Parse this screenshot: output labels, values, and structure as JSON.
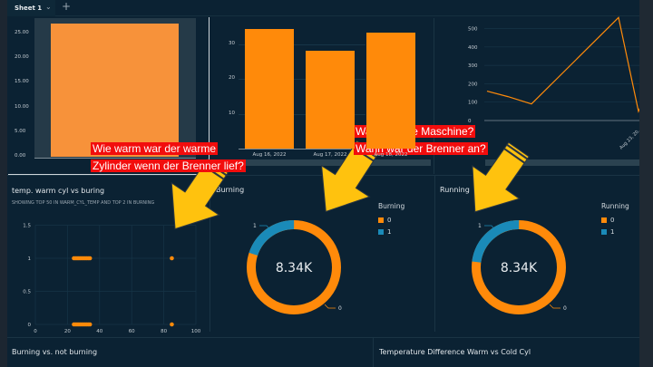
{
  "tabs": {
    "active": "Sheet 1",
    "add_icon": "plus-icon",
    "dropdown_icon": "chevron-down-icon"
  },
  "colors": {
    "orange": "#ff8a0a",
    "blue": "#1a8ab8",
    "background": "#0b2233",
    "callout": "#f20d0d",
    "arrow": "#ffc20e"
  },
  "bar_single": {
    "yticks": [
      "25.00",
      "20.00",
      "15.00",
      "10.00",
      "5.00",
      "0.00"
    ],
    "value": 27,
    "ymax": 27.5
  },
  "bar_dates": {
    "yticks": [
      "30",
      "20",
      "10"
    ],
    "categories": [
      "Aug 16, 2022",
      "Aug 17, 2022",
      "Aug 18, 2022"
    ],
    "values": [
      34.5,
      28.3,
      33.4
    ]
  },
  "line": {
    "yticks": [
      "500",
      "400",
      "300",
      "200",
      "100",
      "0"
    ],
    "xlabel": "Aug 23, 20...",
    "values": [
      160,
      130,
      90,
      560,
      50,
      120
    ]
  },
  "scatter": {
    "title": "temp. warm cyl vs buring",
    "subtitle": "SHOWING TOP 50 IN WARM_CYL_TEMP AND TOP 2 IN BURNING",
    "yticks": [
      "1.5",
      "1",
      "0.5",
      "0"
    ],
    "xticks": [
      "0",
      "20",
      "40",
      "60",
      "80",
      "100"
    ],
    "xs": [
      24,
      25,
      26,
      27,
      28,
      29,
      30,
      31,
      32,
      33,
      34,
      85
    ]
  },
  "burning": {
    "title": "Burning",
    "legend_title": "Burning",
    "legend": [
      "0",
      "1"
    ],
    "total": "8.34K",
    "fraction_1": 0.2,
    "label_1": "1",
    "label_0": "0"
  },
  "running": {
    "title": "Running",
    "legend_title": "Running",
    "legend": [
      "0",
      "1"
    ],
    "total": "8.34K",
    "fraction_1": 0.23,
    "label_1": "1",
    "label_0": "0"
  },
  "bottom": {
    "left_title": "Burning vs. not burning",
    "right_title": "Temperature Difference Warm vs Cold Cyl"
  },
  "callouts": {
    "c1_line1": "Wie warm war der warme",
    "c1_line2": "Zylinder wenn der Brenner lief?",
    "c2_line1": "Wann lief die Maschine?",
    "c2_line2": "Wann war der Brenner an?"
  }
}
